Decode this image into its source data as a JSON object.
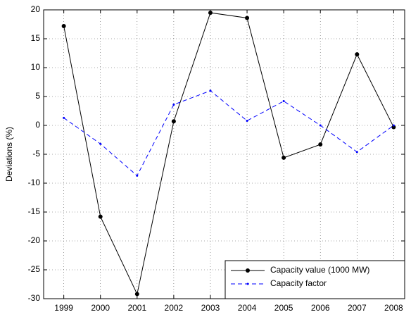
{
  "chart_data": {
    "type": "line",
    "y_label": "Deviations (%)",
    "x": [
      1999,
      2000,
      2001,
      2002,
      2003,
      2004,
      2005,
      2006,
      2007,
      2008
    ],
    "series": [
      {
        "name": "Capacity value (1000 MW)",
        "color": "#000000",
        "line_style": "solid",
        "marker": "circle",
        "values": [
          17.2,
          -15.8,
          -29.2,
          0.7,
          19.5,
          18.6,
          -5.6,
          -3.3,
          12.3,
          -0.3
        ]
      },
      {
        "name": "Capacity factor",
        "color": "#0000ff",
        "line_style": "dashed",
        "marker": "point",
        "values": [
          1.3,
          -3.2,
          -8.7,
          3.6,
          6.0,
          0.8,
          4.2,
          0.0,
          -4.6,
          0.0
        ]
      }
    ],
    "xlim": [
      1998.45,
      2008.3
    ],
    "xticks": [
      1999,
      2000,
      2001,
      2002,
      2003,
      2004,
      2005,
      2006,
      2007,
      2008
    ],
    "ylim": [
      -30,
      20
    ],
    "yticks": [
      -30,
      -25,
      -20,
      -15,
      -10,
      -5,
      0,
      5,
      10,
      15,
      20
    ],
    "grid": true,
    "legend": "lower-right"
  }
}
